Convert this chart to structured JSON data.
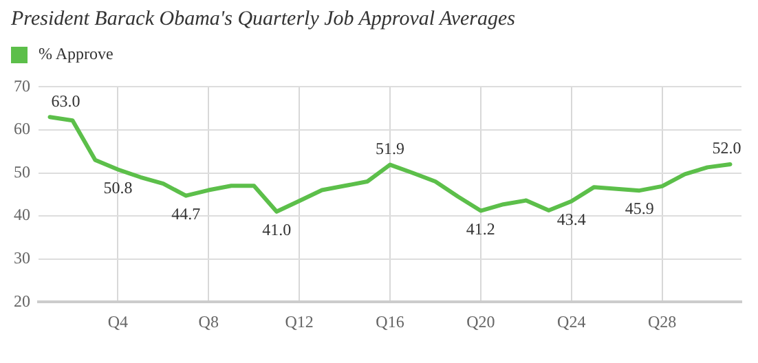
{
  "chart_data": {
    "type": "line",
    "title": "President Barack Obama's Quarterly Job Approval Averages",
    "categories": [
      null,
      null,
      null,
      "Q4",
      null,
      null,
      null,
      "Q8",
      null,
      null,
      null,
      "Q12",
      null,
      null,
      null,
      "Q16",
      null,
      null,
      null,
      "Q20",
      null,
      null,
      null,
      "Q24",
      null,
      null,
      null,
      "Q28",
      null,
      null,
      null
    ],
    "series": [
      {
        "name": "% Approve",
        "color": "#5cbf4a",
        "values": [
          63.0,
          62.2,
          53,
          50.8,
          49,
          47.5,
          44.7,
          46,
          47,
          47,
          41.0,
          43.5,
          46,
          47,
          48,
          51.9,
          50,
          48,
          44.5,
          41.2,
          42.7,
          43.6,
          41.3,
          43.4,
          46.7,
          46.3,
          45.9,
          46.9,
          49.7,
          51.3,
          52.0
        ],
        "value_labels": [
          "63.0",
          null,
          null,
          "50.8",
          null,
          null,
          "44.7",
          null,
          null,
          null,
          "41.0",
          null,
          null,
          null,
          null,
          "51.9",
          null,
          null,
          null,
          "41.2",
          null,
          null,
          null,
          "43.4",
          null,
          null,
          "45.9",
          null,
          null,
          null,
          "52.0"
        ]
      }
    ],
    "ylim": [
      20,
      70
    ],
    "yticks": [
      20,
      30,
      40,
      50,
      60,
      70
    ],
    "grid": true,
    "legend": "top left",
    "marker": "none",
    "line_style": "solid"
  }
}
